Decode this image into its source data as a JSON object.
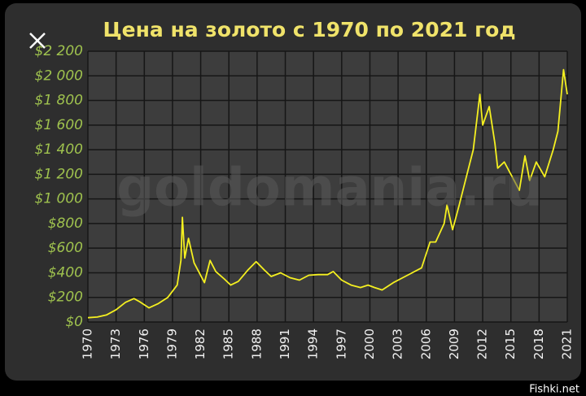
{
  "chart_data": {
    "type": "line",
    "title": "Цена на золото с 1970 по 2021 год",
    "watermark": "goldomania.ru",
    "color": "#f5f020",
    "x": [
      1970,
      1971,
      1972,
      1973,
      1974,
      1974.9,
      1975.5,
      1976.5,
      1977.5,
      1978.5,
      1979.5,
      1979.9,
      1980.05,
      1980.3,
      1980.7,
      1981.3,
      1982.4,
      1983.0,
      1983.6,
      1984.5,
      1985.2,
      1986.0,
      1987.0,
      1987.9,
      1988.8,
      1989.5,
      1990.5,
      1991.5,
      1992.5,
      1993.5,
      1994.5,
      1995.5,
      1996.1,
      1997.0,
      1998.0,
      1999.0,
      1999.8,
      2000.5,
      2001.3,
      2002.5,
      2003.5,
      2004.5,
      2005.5,
      2006.4,
      2007.0,
      2007.9,
      2008.2,
      2008.8,
      2009.5,
      2010.5,
      2011.0,
      2011.7,
      2012.0,
      2012.7,
      2013.3,
      2013.6,
      2014.3,
      2015.0,
      2015.9,
      2016.5,
      2017.0,
      2017.7,
      2018.6,
      2019.5,
      2020.0,
      2020.6,
      2021.0
    ],
    "values": [
      35,
      40,
      58,
      100,
      160,
      190,
      165,
      115,
      150,
      200,
      300,
      500,
      850,
      520,
      680,
      480,
      320,
      500,
      410,
      350,
      300,
      330,
      420,
      490,
      420,
      370,
      400,
      360,
      340,
      380,
      385,
      385,
      410,
      340,
      300,
      280,
      300,
      280,
      260,
      320,
      360,
      400,
      440,
      650,
      650,
      800,
      950,
      750,
      950,
      1250,
      1400,
      1850,
      1600,
      1750,
      1450,
      1250,
      1300,
      1200,
      1070,
      1350,
      1150,
      1300,
      1180,
      1400,
      1550,
      2050,
      1850
    ],
    "xlim": [
      1970,
      2021
    ],
    "xticks": [
      1970,
      1973,
      1976,
      1979,
      1982,
      1985,
      1988,
      1991,
      1994,
      1997,
      2000,
      2003,
      2006,
      2009,
      2012,
      2015,
      2018,
      2021
    ],
    "ylim": [
      0,
      2200
    ],
    "yticks": [
      {
        "value": 0,
        "label": "$0"
      },
      {
        "value": 200,
        "label": "$200"
      },
      {
        "value": 400,
        "label": "$400"
      },
      {
        "value": 600,
        "label": "$600"
      },
      {
        "value": 800,
        "label": "$800"
      },
      {
        "value": 1000,
        "label": "$1 000"
      },
      {
        "value": 1200,
        "label": "$1 200"
      },
      {
        "value": 1400,
        "label": "$1 400"
      },
      {
        "value": 1600,
        "label": "$1 600"
      },
      {
        "value": 1800,
        "label": "$1 800"
      },
      {
        "value": 2000,
        "label": "$2 000"
      },
      {
        "value": 2200,
        "label": "$2 200"
      }
    ],
    "grid": true
  },
  "source": "Fishki.net"
}
